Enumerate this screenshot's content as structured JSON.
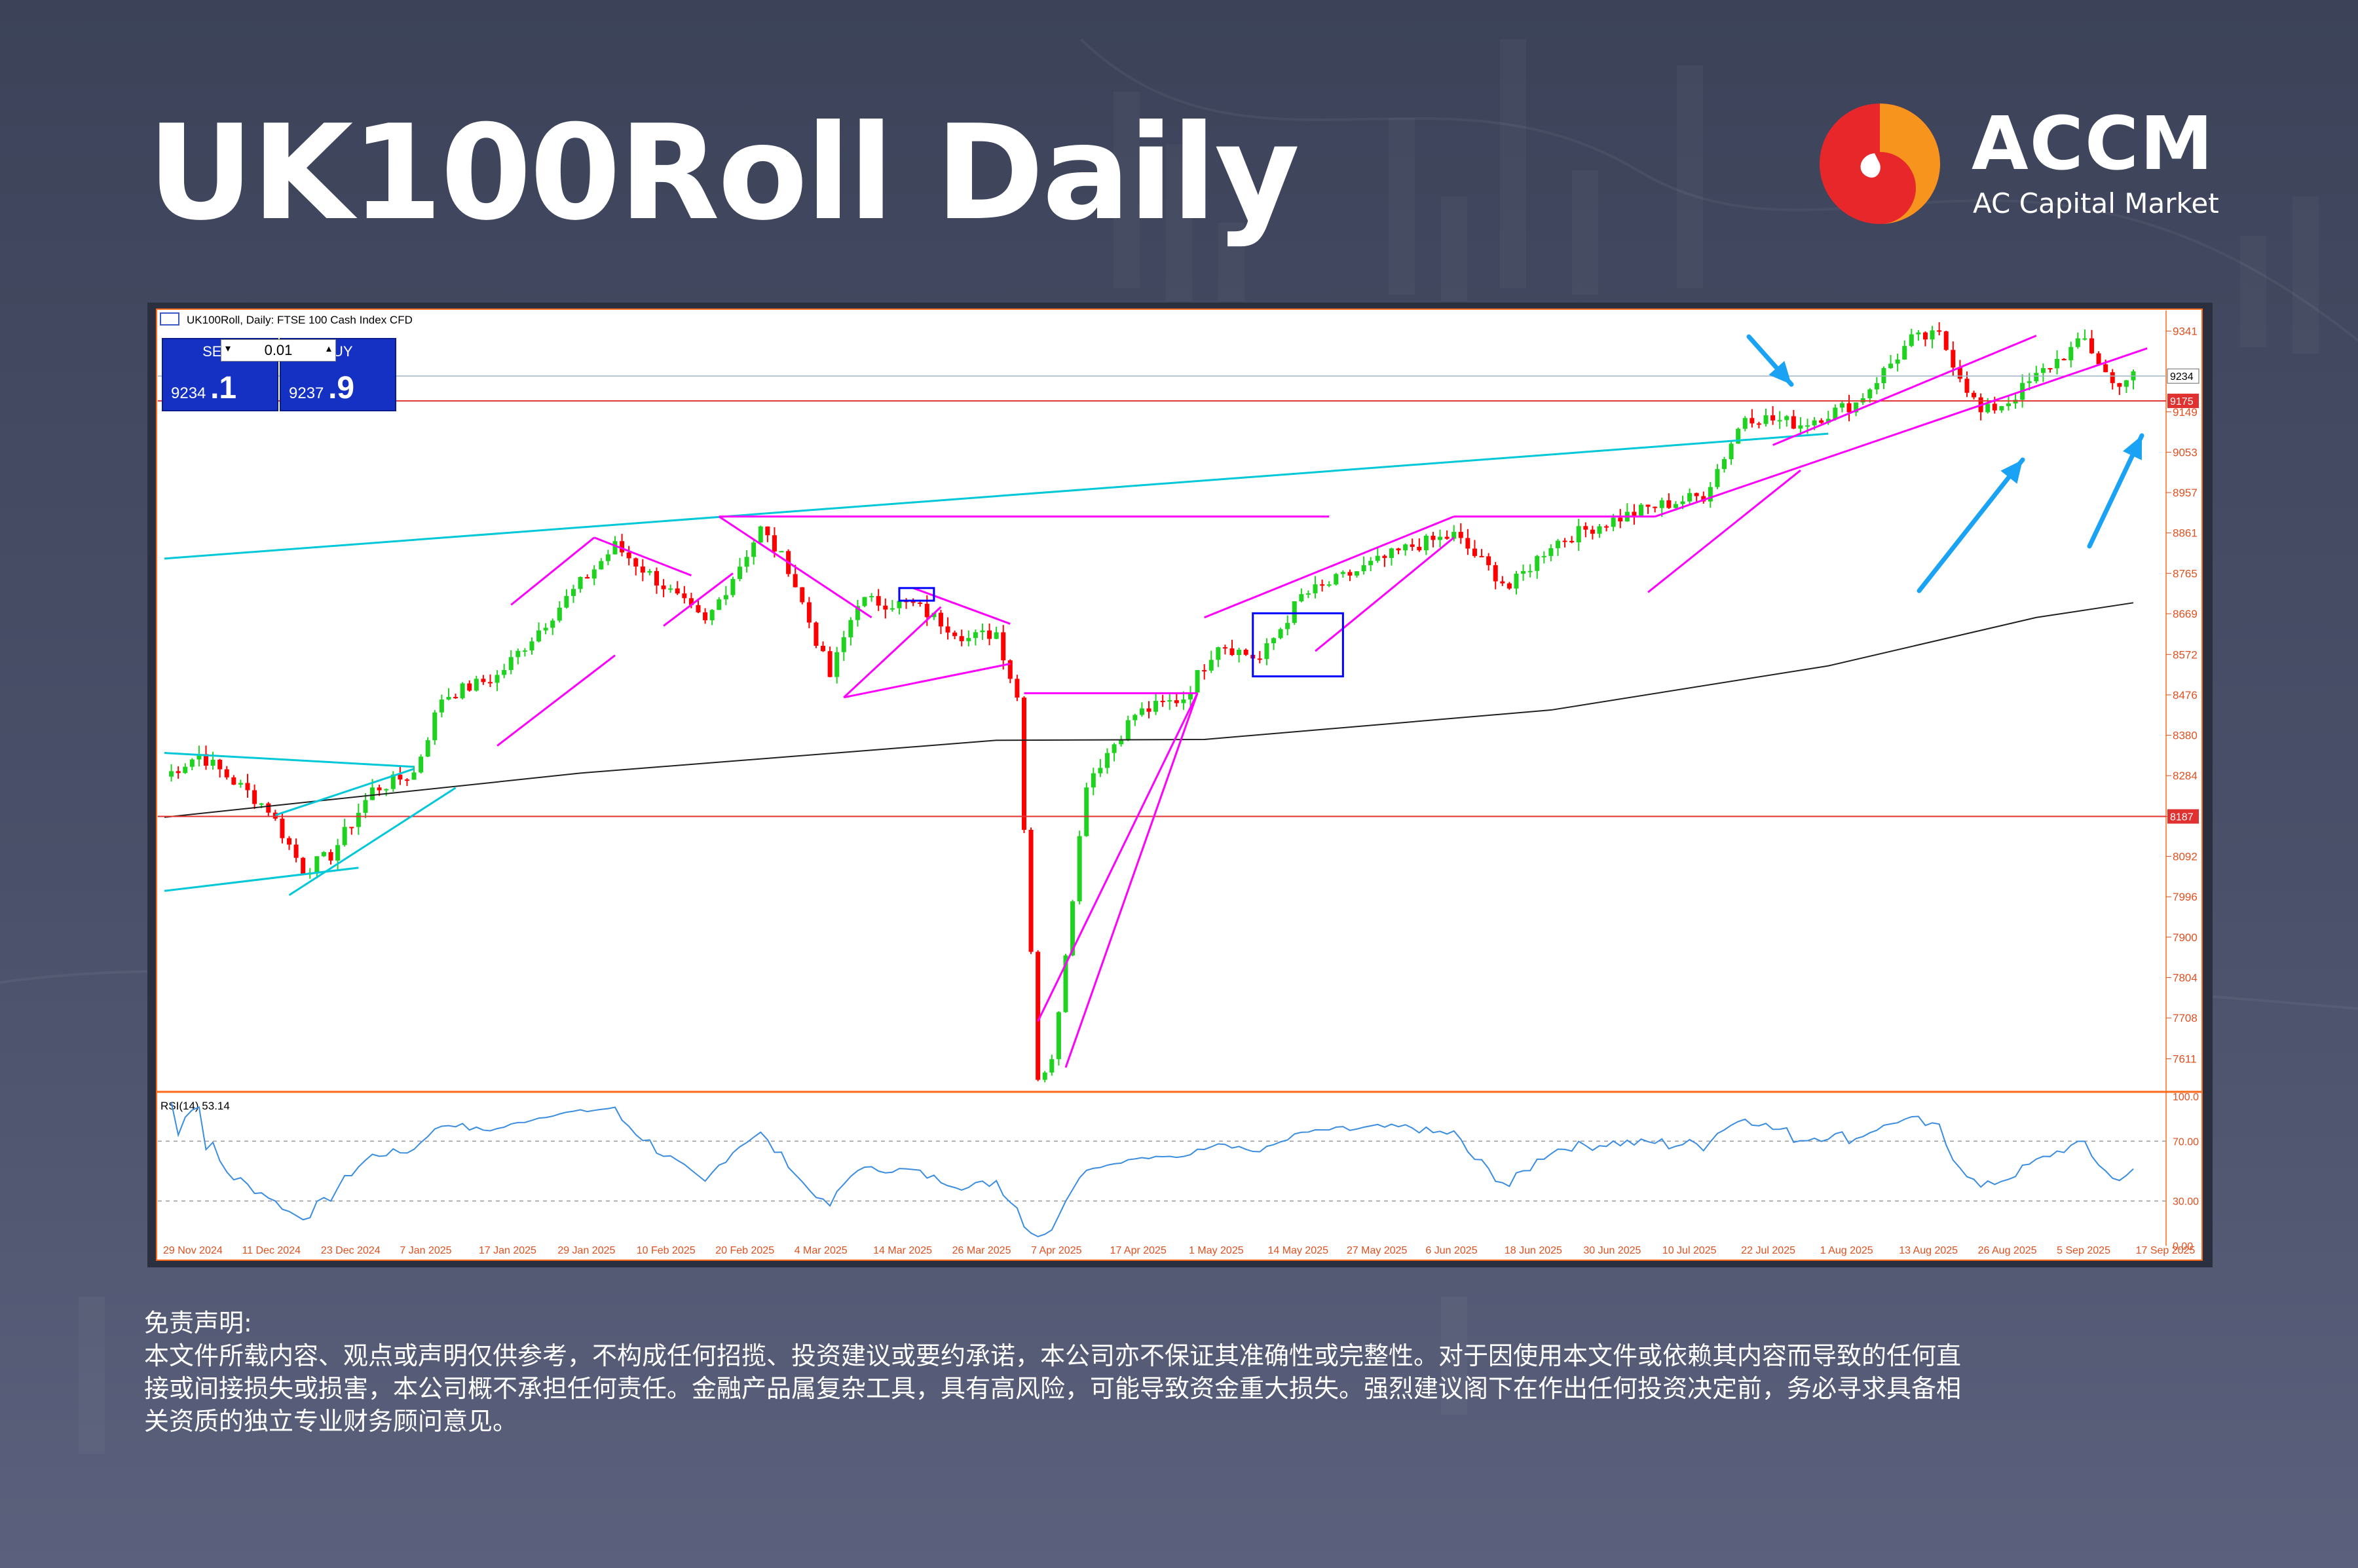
{
  "header": {
    "title": "UK100Roll Daily",
    "brand_name": "ACCM",
    "brand_subtitle": "AC Capital Market"
  },
  "colors": {
    "bull": "#1fd21f",
    "bear": "#ff0000",
    "pattern": "#ff00ff",
    "channel": "#00c8d8",
    "box": "#0000ff",
    "level": "#e03030",
    "ma": "#202020",
    "rsi": "#3a8de0",
    "arrow": "#1aa3f5",
    "axis_text": "#e05020",
    "bg": "#3c4359"
  },
  "icons": [
    "accm-logo-icon",
    "arrow-icon",
    "chart-window-icon"
  ],
  "chart_data": {
    "type": "candlestick",
    "symbol_header": "UK100Roll, Daily: FTSE 100 Cash Index CFD",
    "trade_panel": {
      "sell_label": "SELL",
      "buy_label": "BUY",
      "lot": "0.01",
      "sell_price": "9234.1",
      "buy_price": "9237.9",
      "sell_main": "9234",
      "sell_frac": ".1",
      "buy_main": "9237",
      "buy_frac": ".9"
    },
    "ylim": [
      7540,
      9390
    ],
    "y_ticks": [
      "9341",
      "9149",
      "9053",
      "8957",
      "8861",
      "8765",
      "8669",
      "8572",
      "8476",
      "8380",
      "8284",
      "8187",
      "8092",
      "7996",
      "7900",
      "7804",
      "7708",
      "7611"
    ],
    "x_labels": [
      "29 Nov 2024",
      "11 Dec 2024",
      "23 Dec 2024",
      "7 Jan 2025",
      "17 Jan 2025",
      "29 Jan 2025",
      "10 Feb 2025",
      "20 Feb 2025",
      "4 Mar 2025",
      "14 Mar 2025",
      "26 Mar 2025",
      "7 Apr 2025",
      "17 Apr 2025",
      "1 May 2025",
      "14 May 2025",
      "27 May 2025",
      "6 Jun 2025",
      "18 Jun 2025",
      "30 Jun 2025",
      "10 Jul 2025",
      "22 Jul 2025",
      "1 Aug 2025",
      "13 Aug 2025",
      "26 Aug 2025",
      "5 Sep 2025",
      "17 Sep 2025"
    ],
    "current_price_label": "9234",
    "resistance_level": {
      "value": 9175,
      "label": "9175"
    },
    "support_level": {
      "value": 8187,
      "label": "8187"
    },
    "anchors": [
      [
        0,
        8282
      ],
      [
        5,
        8335
      ],
      [
        15,
        8205
      ],
      [
        20,
        8060
      ],
      [
        24,
        8095
      ],
      [
        30,
        8250
      ],
      [
        36,
        8290
      ],
      [
        40,
        8470
      ],
      [
        48,
        8520
      ],
      [
        58,
        8705
      ],
      [
        65,
        8830
      ],
      [
        72,
        8735
      ],
      [
        78,
        8645
      ],
      [
        86,
        8870
      ],
      [
        90,
        8780
      ],
      [
        96,
        8520
      ],
      [
        100,
        8700
      ],
      [
        108,
        8690
      ],
      [
        116,
        8610
      ],
      [
        120,
        8625
      ],
      [
        123,
        8470
      ],
      [
        126,
        7570
      ],
      [
        128,
        7600
      ],
      [
        133,
        8270
      ],
      [
        140,
        8430
      ],
      [
        147,
        8470
      ],
      [
        152,
        8600
      ],
      [
        158,
        8560
      ],
      [
        164,
        8710
      ],
      [
        172,
        8770
      ],
      [
        180,
        8830
      ],
      [
        186,
        8855
      ],
      [
        194,
        8730
      ],
      [
        200,
        8835
      ],
      [
        206,
        8875
      ],
      [
        214,
        8920
      ],
      [
        222,
        8950
      ],
      [
        228,
        9140
      ],
      [
        236,
        9120
      ],
      [
        244,
        9170
      ],
      [
        252,
        9320
      ],
      [
        256,
        9330
      ],
      [
        262,
        9145
      ],
      [
        266,
        9175
      ],
      [
        272,
        9260
      ],
      [
        277,
        9320
      ],
      [
        281,
        9215
      ],
      [
        284,
        9234
      ]
    ],
    "rsi": {
      "label": "RSI(14) 53.14",
      "period": 14,
      "last": 53.14,
      "levels": [
        70,
        30
      ],
      "y_ticks": [
        "100.0",
        "70.00",
        "30.00",
        "0.00"
      ]
    }
  },
  "disclaimer": {
    "title": "免责声明:",
    "line1": "本文件所载内容、观点或声明仅供参考，不构成任何招揽、投资建议或要约承诺，本公司亦不保证其准确性或完整性。对于因使用本文件或依赖其内容而导致的任何直",
    "line2": "接或间接损失或损害，本公司概不承担任何责任。金融产品属复杂工具，具有高风险，可能导致资金重大损失。强烈建议阁下在作出任何投资决定前，务必寻求具备相",
    "line3": "关资质的独立专业财务顾问意见。"
  }
}
